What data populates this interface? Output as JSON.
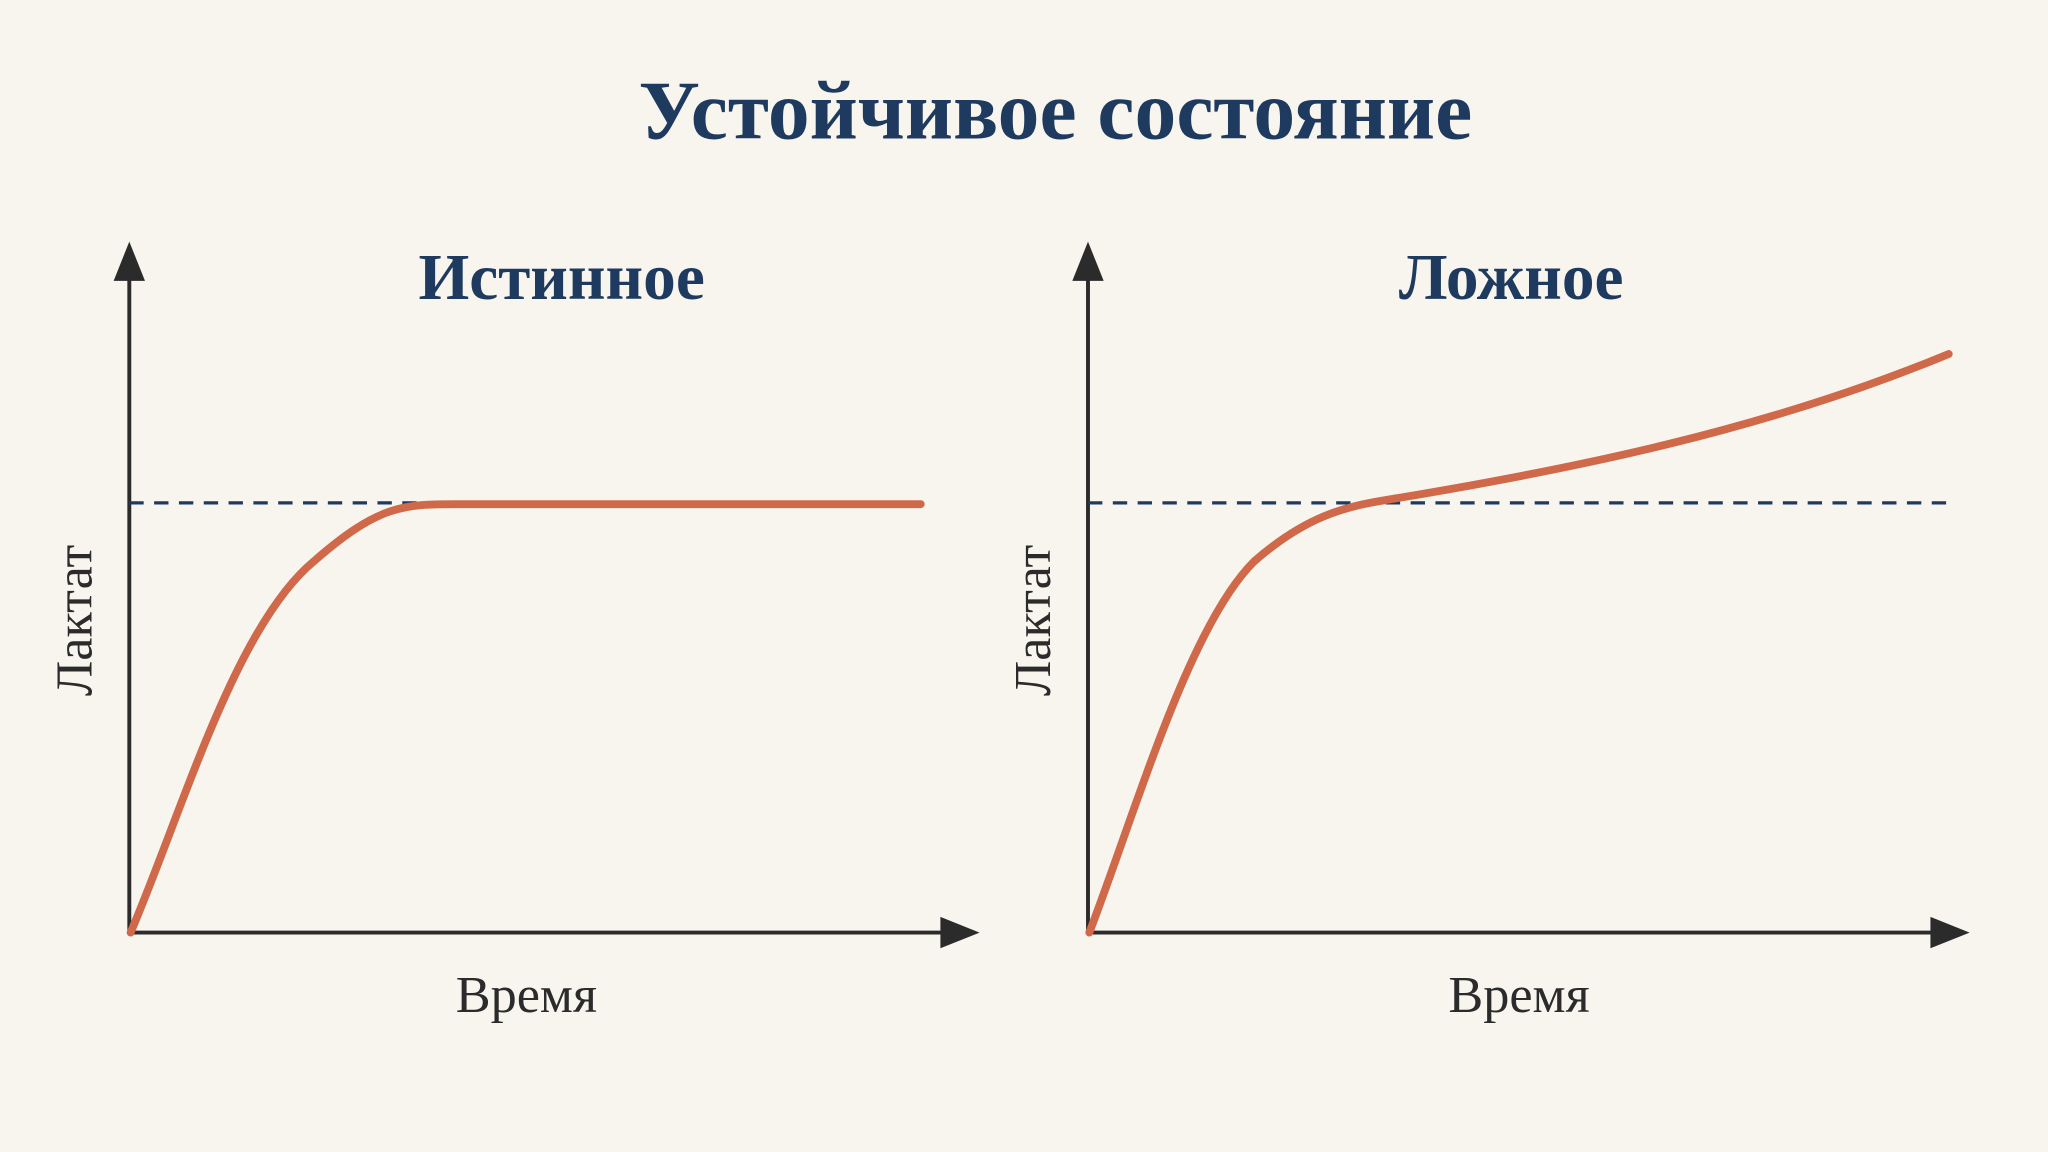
{
  "header": {
    "title": "Устойчивое состояние"
  },
  "panels": [
    {
      "title": "Истинное",
      "y_label": "Лактат",
      "x_label": "Время"
    },
    {
      "title": "Ложное",
      "y_label": "Лактат",
      "x_label": "Время"
    }
  ]
}
